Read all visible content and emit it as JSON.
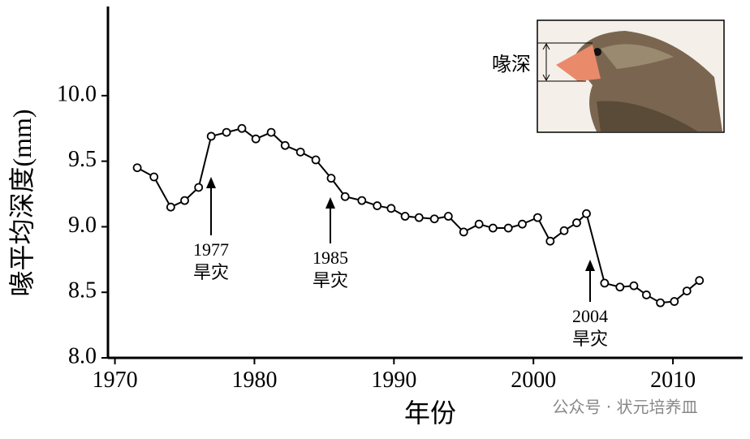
{
  "chart_data": {
    "type": "line",
    "x_label": "年份",
    "y_label": "喙平均深度(mm)",
    "xlim": [
      1969.5,
      2015
    ],
    "xticks": [
      1970,
      1980,
      1990,
      2000,
      2010
    ],
    "ylim": [
      8.0,
      10.68
    ],
    "yticks": [
      {
        "value": 8.0,
        "label": "8.0"
      },
      {
        "value": 8.5,
        "label": "8.5"
      },
      {
        "value": 9.0,
        "label": "9.0"
      },
      {
        "value": 9.5,
        "label": "9.5"
      },
      {
        "value": 10.0,
        "label": "10.0"
      }
    ],
    "x": [
      1971.6,
      1972.8,
      1974.0,
      1975.0,
      1976.0,
      1976.9,
      1978.0,
      1979.1,
      1980.1,
      1981.2,
      1982.2,
      1983.3,
      1984.4,
      1985.5,
      1986.5,
      1987.7,
      1988.8,
      1989.8,
      1990.8,
      1991.8,
      1992.9,
      1993.9,
      1995.0,
      1996.1,
      1997.1,
      1998.2,
      1999.2,
      2000.3,
      2001.2,
      2002.2,
      2003.1,
      2003.8,
      2005.1,
      2006.2,
      2007.2,
      2008.1,
      2009.1,
      2010.1,
      2011.0,
      2011.9
    ],
    "series": [
      {
        "color": "#000000",
        "values": [
          9.45,
          9.38,
          9.15,
          9.2,
          9.3,
          9.69,
          9.72,
          9.75,
          9.67,
          9.72,
          9.62,
          9.57,
          9.51,
          9.37,
          9.23,
          9.2,
          9.16,
          9.14,
          9.08,
          9.07,
          9.06,
          9.08,
          8.96,
          9.02,
          8.99,
          8.99,
          9.02,
          9.07,
          8.89,
          8.97,
          9.03,
          9.1,
          8.57,
          8.54,
          8.55,
          8.48,
          8.42,
          8.43,
          8.51,
          8.59
        ]
      }
    ],
    "annotations": [
      {
        "year": "1977",
        "text": "旱灾"
      },
      {
        "year": "1985",
        "text": "旱灾"
      },
      {
        "year": "2004",
        "text": "旱灾"
      }
    ],
    "inset_label": "喙深",
    "watermark": "公众号 · 状元培养皿"
  }
}
